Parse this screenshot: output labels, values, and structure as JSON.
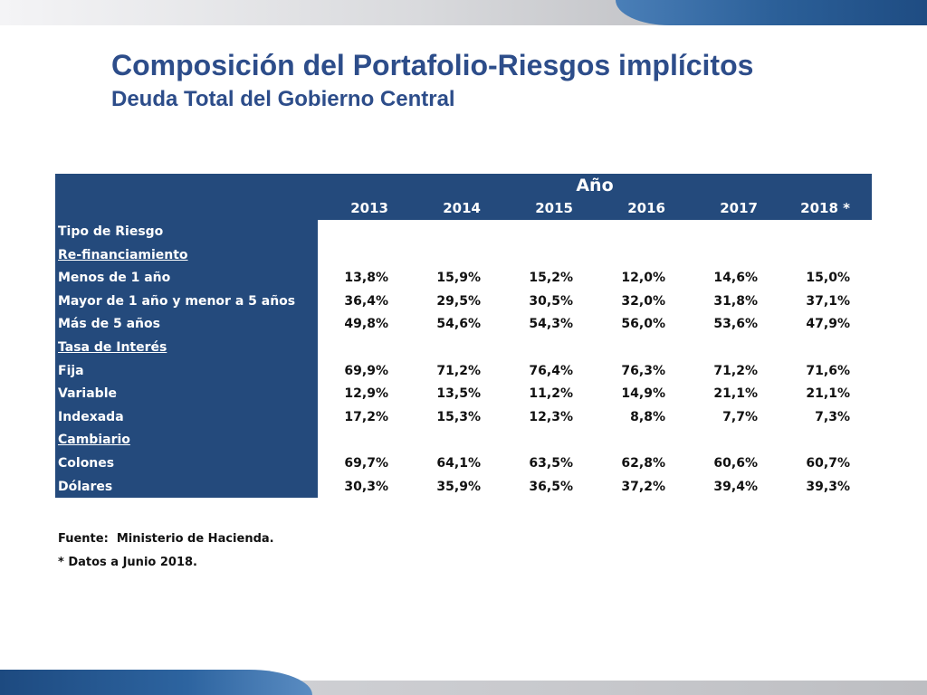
{
  "header": {
    "title": "Composición del Portafolio-Riesgos implícitos",
    "subtitle": "Deuda Total del Gobierno Central"
  },
  "table": {
    "group_header": "Año",
    "row_header": "Tipo de Riesgo",
    "columns": [
      "2013",
      "2014",
      "2015",
      "2016",
      "2017",
      "2018 *"
    ],
    "rows": [
      {
        "label": "Re-financiamiento",
        "section": true,
        "values": []
      },
      {
        "label": "Menos de 1 año",
        "section": false,
        "values": [
          "13,8%",
          "15,9%",
          "15,2%",
          "12,0%",
          "14,6%",
          "15,0%"
        ]
      },
      {
        "label": "Mayor de 1 año y menor a 5 años",
        "section": false,
        "values": [
          "36,4%",
          "29,5%",
          "30,5%",
          "32,0%",
          "31,8%",
          "37,1%"
        ]
      },
      {
        "label": "Más de 5 años",
        "section": false,
        "values": [
          "49,8%",
          "54,6%",
          "54,3%",
          "56,0%",
          "53,6%",
          "47,9%"
        ]
      },
      {
        "label": "Tasa de Interés",
        "section": true,
        "values": []
      },
      {
        "label": "Fija",
        "section": false,
        "values": [
          "69,9%",
          "71,2%",
          "76,4%",
          "76,3%",
          "71,2%",
          "71,6%"
        ]
      },
      {
        "label": "Variable",
        "section": false,
        "values": [
          "12,9%",
          "13,5%",
          "11,2%",
          "14,9%",
          "21,1%",
          "21,1%"
        ]
      },
      {
        "label": "Indexada",
        "section": false,
        "values": [
          "17,2%",
          "15,3%",
          "12,3%",
          "8,8%",
          "7,7%",
          "7,3%"
        ]
      },
      {
        "label": "Cambiario",
        "section": true,
        "values": []
      },
      {
        "label": "Colones",
        "section": false,
        "values": [
          "69,7%",
          "64,1%",
          "63,5%",
          "62,8%",
          "60,6%",
          "60,7%"
        ]
      },
      {
        "label": "Dólares",
        "section": false,
        "values": [
          "30,3%",
          "35,9%",
          "36,5%",
          "37,2%",
          "39,4%",
          "39,3%"
        ]
      }
    ]
  },
  "footnotes": {
    "source": "Fuente:  Ministerio de Hacienda.",
    "data_note": "* Datos a Junio 2018."
  },
  "colors": {
    "title": "#2d4d8a",
    "table_header_bg": "#244a7c",
    "accent_blue": "#1d4a80"
  }
}
